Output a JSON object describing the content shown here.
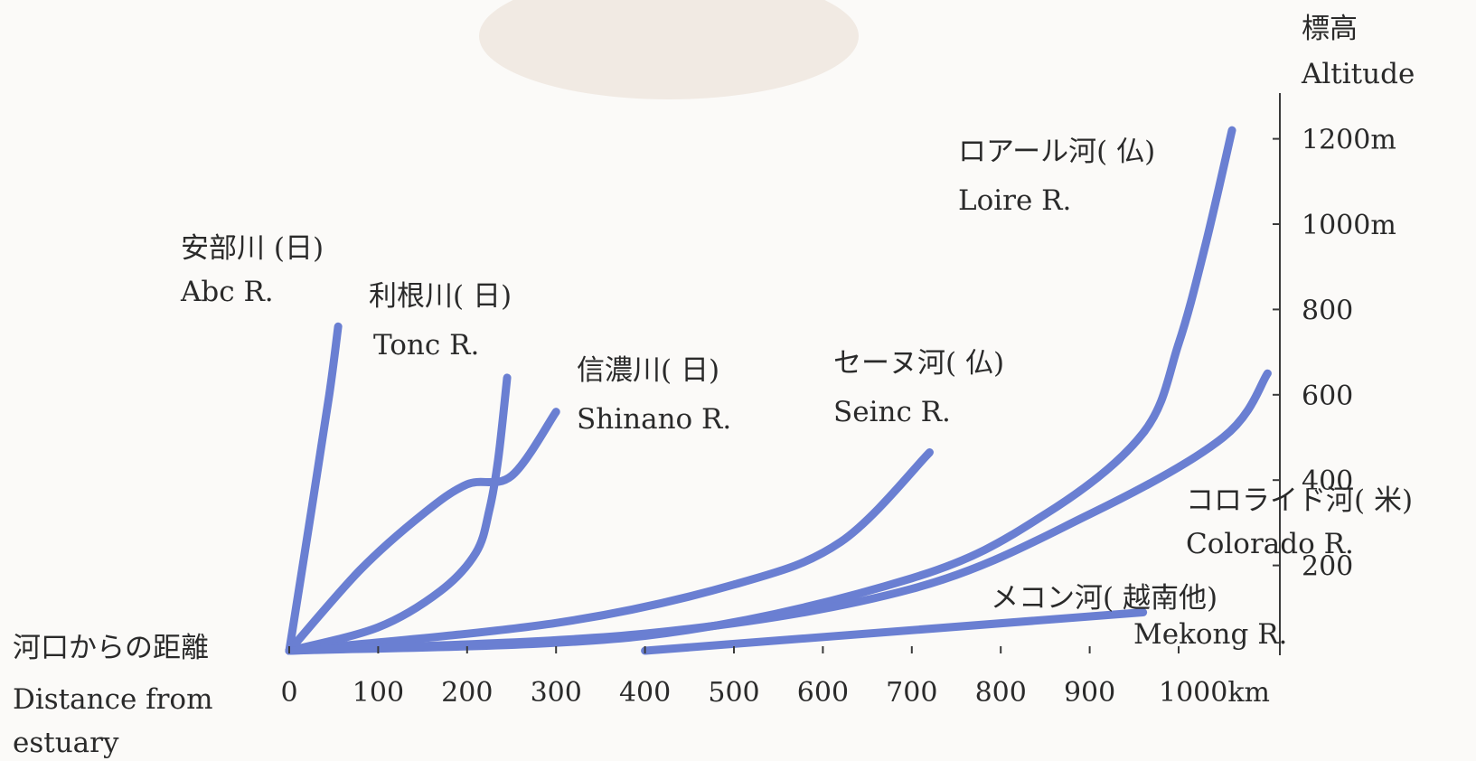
{
  "chart_data": {
    "type": "line",
    "x_axis": {
      "label_ja": "河口からの距離",
      "label_en": [
        "Distance from",
        "estuary"
      ],
      "ticks": [
        "0",
        "100",
        "200",
        "300",
        "400",
        "500",
        "600",
        "700",
        "800",
        "900",
        "1000km"
      ],
      "range": [
        0,
        1100
      ],
      "unit": "km"
    },
    "y_axis": {
      "label_ja": "標高",
      "label_en": "Altitude",
      "ticks": [
        {
          "value": 200,
          "label": "200"
        },
        {
          "value": 400,
          "label": "400"
        },
        {
          "value": 600,
          "label": "600"
        },
        {
          "value": 800,
          "label": "800"
        },
        {
          "value": 1000,
          "label": "1000m"
        },
        {
          "value": 1200,
          "label": "1200m"
        }
      ],
      "unit": "m"
    },
    "series": [
      {
        "name_ja": "安部川 (日)",
        "name_en": "Abc R.",
        "points": [
          [
            0,
            0
          ],
          [
            25,
            330
          ],
          [
            45,
            600
          ],
          [
            55,
            760
          ]
        ]
      },
      {
        "name_ja": "利根川( 日)",
        "name_en": "Tonc R.",
        "points": [
          [
            0,
            0
          ],
          [
            100,
            55
          ],
          [
            170,
            140
          ],
          [
            210,
            230
          ],
          [
            225,
            330
          ],
          [
            235,
            450
          ],
          [
            245,
            640
          ]
        ]
      },
      {
        "name_ja": "信濃川( 日)",
        "name_en": "Shinano R.",
        "points": [
          [
            0,
            0
          ],
          [
            80,
            190
          ],
          [
            150,
            320
          ],
          [
            200,
            390
          ],
          [
            250,
            410
          ],
          [
            300,
            560
          ]
        ]
      },
      {
        "name_ja": "セーヌ河( 仏)",
        "name_en": "Seinc R.",
        "points": [
          [
            0,
            0
          ],
          [
            300,
            65
          ],
          [
            500,
            155
          ],
          [
            620,
            255
          ],
          [
            720,
            465
          ]
        ]
      },
      {
        "name_ja": "ロアール河( 仏)",
        "name_en": "Loire R.",
        "points": [
          [
            0,
            0
          ],
          [
            400,
            35
          ],
          [
            700,
            170
          ],
          [
            850,
            320
          ],
          [
            960,
            510
          ],
          [
            1000,
            720
          ],
          [
            1030,
            950
          ],
          [
            1060,
            1220
          ]
        ]
      },
      {
        "name_ja": "コロライド河( 米)",
        "name_en": "Colorado R.",
        "points": [
          [
            0,
            0
          ],
          [
            400,
            40
          ],
          [
            700,
            145
          ],
          [
            900,
            320
          ],
          [
            1050,
            500
          ],
          [
            1100,
            650
          ]
        ]
      },
      {
        "name_ja": "メコン河( 越南他)",
        "name_en": "Mekong R.",
        "points": [
          [
            400,
            0
          ],
          [
            960,
            90
          ]
        ]
      }
    ]
  },
  "style": {
    "line_color": "#6a7fd2",
    "text_color": "#2a2a2a",
    "axis_color": "#3a3a3a",
    "background": "#fbfaf8",
    "smudge_color": "#f1eae3"
  }
}
